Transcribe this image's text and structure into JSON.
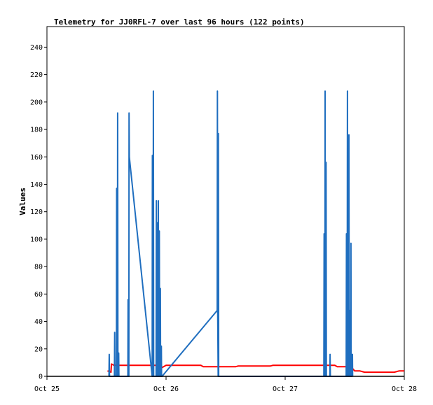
{
  "chart_data": {
    "type": "line",
    "title": "Telemetry for JJ0RFL-7 over last 96 hours (122 points)",
    "xlabel": "",
    "ylabel": "Values",
    "ylim": [
      0,
      255
    ],
    "xlim": [
      0,
      72
    ],
    "x_unit": "hours since Oct 25 00:00",
    "y_ticks": [
      0,
      20,
      40,
      60,
      80,
      100,
      120,
      140,
      160,
      180,
      200,
      220,
      240
    ],
    "x_ticks": [
      {
        "x": 0,
        "label": "Oct 25"
      },
      {
        "x": 24,
        "label": "Oct 26"
      },
      {
        "x": 48,
        "label": "Oct 27"
      },
      {
        "x": 72,
        "label": "Oct 28"
      }
    ],
    "grid": false,
    "series": [
      {
        "name": "",
        "color": "#ff0000",
        "x": [
          12.2,
          12.9,
          13.0,
          13.5,
          13.8,
          21.0,
          22.0,
          23.0,
          24.0,
          31.0,
          31.5,
          38.0,
          38.5,
          45.0,
          45.5,
          52.0,
          58.0,
          58.5,
          60.5,
          61.0,
          62.0,
          63.0,
          64.0,
          66.0,
          70.0,
          71.0,
          72.0
        ],
        "values": [
          4,
          3,
          9,
          8,
          8,
          8,
          8,
          6,
          8,
          8,
          7,
          7,
          7.5,
          7.5,
          8,
          8,
          8,
          7,
          7,
          8,
          4,
          4,
          3,
          3,
          3,
          4,
          4
        ]
      },
      {
        "name": "",
        "color": "#1f6ebf",
        "x": [
          12.5,
          12.55,
          12.6,
          13.6,
          13.65,
          13.7,
          14.0,
          14.05,
          14.1,
          14.2,
          14.25,
          14.3,
          14.4,
          14.45,
          14.5,
          16.3,
          16.35,
          16.4,
          16.5,
          16.55,
          16.6,
          21.2,
          21.25,
          21.3,
          21.4,
          21.45,
          21.5,
          21.6,
          21.65,
          21.7,
          22.0,
          22.05,
          22.1,
          22.2,
          22.25,
          22.3,
          22.4,
          22.45,
          22.5,
          22.6,
          22.65,
          22.7,
          22.8,
          22.85,
          22.9,
          23.0,
          23.05,
          23.1,
          23.2,
          34.3,
          34.35,
          34.4,
          34.5,
          34.55,
          34.6,
          55.8,
          55.85,
          55.9,
          56.0,
          56.05,
          56.1,
          56.2,
          56.25,
          56.3,
          57.0,
          57.05,
          57.1,
          60.3,
          60.35,
          60.4,
          60.5,
          60.55,
          60.6,
          60.8,
          60.85,
          60.9,
          61.0,
          61.05,
          61.1,
          61.2,
          61.25,
          61.3,
          61.5,
          61.55,
          61.6
        ],
        "values": [
          0,
          16,
          0,
          0,
          32,
          0,
          0,
          137,
          0,
          0,
          192,
          0,
          0,
          17,
          0,
          0,
          56,
          0,
          0,
          192,
          160,
          0,
          161,
          0,
          0,
          208,
          0,
          0,
          0,
          0,
          0,
          128,
          0,
          0,
          112,
          0,
          0,
          128,
          0,
          0,
          106,
          0,
          0,
          64,
          0,
          0,
          22,
          0,
          0,
          48,
          208,
          48,
          0,
          177,
          0,
          0,
          104,
          0,
          0,
          208,
          0,
          0,
          156,
          0,
          0,
          16,
          0,
          0,
          104,
          0,
          0,
          208,
          0,
          0,
          176,
          0,
          0,
          48,
          0,
          0,
          97,
          0,
          0,
          16,
          0
        ]
      },
      {
        "name": "",
        "color": "#000000",
        "x": [
          0,
          72
        ],
        "values": [
          0,
          0
        ]
      }
    ]
  }
}
